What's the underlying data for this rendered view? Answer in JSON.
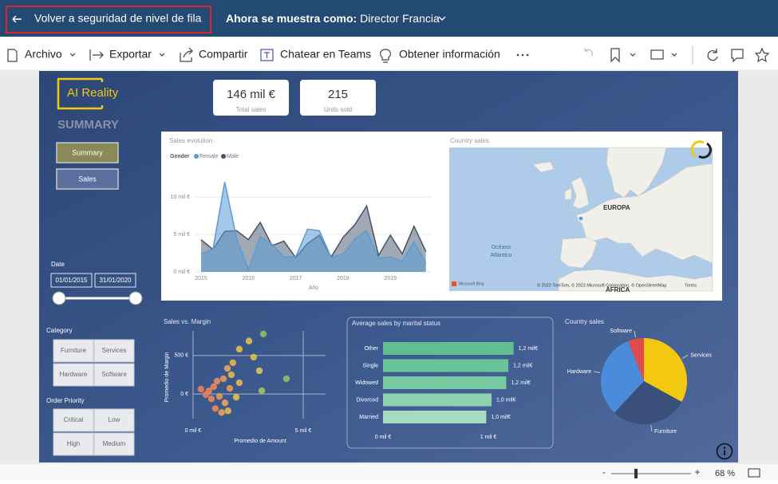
{
  "topbar": {
    "back": "Volver a seguridad de nivel de fila",
    "viewing_label": "Ahora se muestra como:",
    "viewing_role": "Director Francia"
  },
  "toolbar": {
    "items": [
      "Archivo",
      "Exportar",
      "Compartir",
      "Chatear en Teams",
      "Obtener información"
    ]
  },
  "report": {
    "logo": "AI Reality",
    "page_title": "SUMMARY",
    "nav": [
      "Summary",
      "Sales"
    ],
    "cards": [
      {
        "value": "146 mil €",
        "label": "Total sales"
      },
      {
        "value": "215",
        "label": "Units sold"
      }
    ],
    "date_filter": {
      "label": "Date",
      "start": "01/01/2015",
      "end": "31/01/2020"
    },
    "category_filter": {
      "label": "Category",
      "options": [
        "Furniture",
        "Services",
        "Hardware",
        "Software"
      ]
    },
    "priority_filter": {
      "label": "Order Priority",
      "options": [
        "Critical",
        "Low",
        "High",
        "Medium"
      ]
    }
  },
  "map": {
    "title": "Country sales",
    "region": "EUROPA",
    "ocean": [
      "Océano",
      "Atlántico"
    ],
    "continent": "ÁFRICA",
    "provider": "Microsoft Bing",
    "attribution": "© 2022 TomTom, © 2023 Microsoft Corporation, © OpenStreetMap",
    "terms": "Terms"
  },
  "chart_data": [
    {
      "type": "area",
      "title": "Sales evolution",
      "legend_title": "Gender",
      "xlabel": "Año",
      "x": [
        2015,
        2015.25,
        2015.5,
        2015.75,
        2016,
        2016.25,
        2016.5,
        2016.75,
        2017,
        2017.25,
        2017.5,
        2017.75,
        2018,
        2018.25,
        2018.5,
        2018.75,
        2019,
        2019.25,
        2019.5,
        2019.75
      ],
      "xlim": [
        2015,
        2019.75
      ],
      "xticks": [
        2015,
        2016,
        2017,
        2018,
        2019
      ],
      "ylim": [
        0,
        12.5
      ],
      "yticks": [
        {
          "value": 0,
          "label": "0 mil €"
        },
        {
          "value": 5,
          "label": "5 mil €"
        },
        {
          "value": 10,
          "label": "10 mil €"
        }
      ],
      "grid": true,
      "series": [
        {
          "name": "Female",
          "color": "#5b9bd5",
          "values": [
            2.4,
            3.0,
            12.0,
            4.5,
            0.3,
            4.7,
            3.7,
            2.0,
            2.0,
            5.7,
            5.5,
            1.9,
            2.4,
            4.4,
            5.5,
            1.8,
            2.0,
            1.4,
            4.0,
            1.2
          ]
        },
        {
          "name": "Male",
          "color": "#44546a",
          "values": [
            4.3,
            3.0,
            5.4,
            5.5,
            4.3,
            6.6,
            3.5,
            4.1,
            1.9,
            3.8,
            4.9,
            2.0,
            4.6,
            6.3,
            8.8,
            2.2,
            4.9,
            2.4,
            6.1,
            2.7
          ]
        }
      ]
    },
    {
      "type": "scatter",
      "title": "Sales vs. Margin",
      "xlabel": "Promedio de Amount",
      "ylabel": "Promedio de Margin",
      "x": [
        3.19,
        2.54,
        2.1,
        2.75,
        3.01,
        4.24,
        3.12,
        1.81,
        1.56,
        1.74,
        1.38,
        1.09,
        0.94,
        0.72,
        0.58,
        0.83,
        1.2,
        1.45,
        1.01,
        1.3,
        1.59,
        1.96,
        2.1,
        0.36,
        1.67
      ],
      "values": [
        781,
        688,
        583,
        479,
        302,
        198,
        42,
        406,
        333,
        250,
        198,
        167,
        94,
        42,
        -10,
        -63,
        -31,
        -115,
        -188,
        -240,
        -219,
        -42,
        146,
        63,
        73
      ],
      "colors": [
        "#8cc060",
        "#e0c050",
        "#e3c04f",
        "#e0c050",
        "#d6c85a",
        "#8cc060",
        "#9cc35e",
        "#e3b852",
        "#e8a857",
        "#e3b852",
        "#e9995a",
        "#ea8f5b",
        "#eb875c",
        "#ec845c",
        "#ec805c",
        "#eb875c",
        "#e9995a",
        "#e8a857",
        "#eb875c",
        "#e9a058",
        "#e3b852",
        "#e0c050",
        "#e3b852",
        "#ec805c",
        "#e9995a"
      ],
      "xlim": [
        -0.25,
        6
      ],
      "xticks": [
        {
          "value": 0,
          "label": "0 mil €"
        },
        {
          "value": 5,
          "label": "5 mil €"
        }
      ],
      "ylim": [
        -320,
        820
      ],
      "yticks": [
        {
          "value": 0,
          "label": "0 €"
        },
        {
          "value": 500,
          "label": "500 €"
        }
      ],
      "grid": true
    },
    {
      "type": "bar",
      "orientation": "horizontal",
      "title": "Average sales by marital status",
      "categories": [
        "Other",
        "Single",
        "Widowed",
        "Divorced",
        "Married"
      ],
      "values": [
        1.24,
        1.19,
        1.17,
        1.03,
        0.98
      ],
      "value_labels": [
        "1,2 mil€",
        "1,2 mil€",
        "1,2 mil€",
        "1,0 mil€",
        "1,0 mil€"
      ],
      "colors": [
        "#5fbf8f",
        "#6ac49a",
        "#77c9a2",
        "#8dd3b0",
        "#a5dcc0"
      ],
      "xlim": [
        0,
        1.3
      ],
      "xticks": [
        {
          "value": 0,
          "label": "0 mil €"
        },
        {
          "value": 1,
          "label": "1 mil €"
        }
      ]
    },
    {
      "type": "pie",
      "title": "Country sales",
      "categories": [
        "Services",
        "Furniture",
        "Hardware",
        "Software"
      ],
      "values": [
        33,
        29,
        32,
        6
      ],
      "colors": [
        "#f2c811",
        "#3a4f7a",
        "#4a8bdc",
        "#e04b4b"
      ]
    }
  ],
  "status": {
    "minus": "-",
    "plus": "+",
    "zoom": "68 %"
  }
}
